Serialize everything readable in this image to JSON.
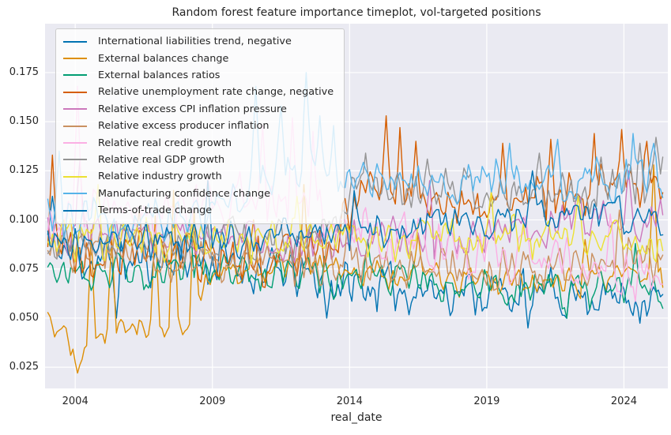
{
  "chart_data": {
    "type": "line",
    "title": "Random forest feature importance timeplot, vol-targeted positions",
    "xlabel": "real_date",
    "ylabel": "",
    "grid": true,
    "legend_position": "upper left",
    "plot_bg": "#EAEAF2",
    "grid_color": "#FFFFFF",
    "text_color": "#262626",
    "xlim": [
      2002.9,
      2025.6
    ],
    "ylim": [
      0.0142,
      0.1999
    ],
    "x_ticks": [
      2004,
      2009,
      2014,
      2019,
      2024
    ],
    "y_ticks": [
      0.025,
      0.05,
      0.075,
      0.1,
      0.125,
      0.15,
      0.175
    ],
    "x_start": 2003.0,
    "x_end": 2025.42,
    "points_per_year": 12,
    "value_min": 0.019,
    "value_max": 0.196,
    "series": [
      {
        "name": "International liabilities trend, negative",
        "color": "#0173B2",
        "noise": 0.012,
        "anchors": [
          [
            2003,
            0.092
          ],
          [
            2004,
            0.08
          ],
          [
            2006,
            0.078
          ],
          [
            2008,
            0.08
          ],
          [
            2010,
            0.075
          ],
          [
            2012,
            0.072
          ],
          [
            2014,
            0.067
          ],
          [
            2016,
            0.065
          ],
          [
            2018,
            0.064
          ],
          [
            2020,
            0.063
          ],
          [
            2022,
            0.062
          ],
          [
            2024,
            0.061
          ],
          [
            2025.4,
            0.06
          ]
        ],
        "spikes": [
          [
            2003.2,
            0.112
          ],
          [
            2005.5,
            0.05
          ],
          [
            2009.3,
            0.095
          ],
          [
            2013.2,
            0.05
          ],
          [
            2020.5,
            0.045
          ]
        ]
      },
      {
        "name": "External balances change",
        "color": "#DE8F05",
        "noise": 0.008,
        "anchors": [
          [
            2003,
            0.05
          ],
          [
            2003.7,
            0.038
          ],
          [
            2004.3,
            0.033
          ],
          [
            2005,
            0.043
          ],
          [
            2006,
            0.046
          ],
          [
            2007,
            0.042
          ],
          [
            2008,
            0.05
          ],
          [
            2009,
            0.07
          ],
          [
            2010,
            0.075
          ],
          [
            2012,
            0.076
          ],
          [
            2014,
            0.073
          ],
          [
            2016,
            0.071
          ],
          [
            2018,
            0.069
          ],
          [
            2020,
            0.068
          ],
          [
            2022,
            0.069
          ],
          [
            2024,
            0.07
          ],
          [
            2025.4,
            0.068
          ]
        ],
        "spikes": [
          [
            2004.1,
            0.022
          ],
          [
            2004.6,
            0.095
          ],
          [
            2005.3,
            0.09
          ],
          [
            2006.9,
            0.102
          ],
          [
            2007.6,
            0.115
          ],
          [
            2008.3,
            0.105
          ],
          [
            2010.5,
            0.1
          ],
          [
            2012.3,
            0.118
          ],
          [
            2016.5,
            0.093
          ],
          [
            2022.6,
            0.09
          ],
          [
            2025.1,
            0.128
          ]
        ]
      },
      {
        "name": "External balances ratios",
        "color": "#029E73",
        "noise": 0.0095,
        "anchors": [
          [
            2003,
            0.076
          ],
          [
            2005,
            0.073
          ],
          [
            2007,
            0.074
          ],
          [
            2009,
            0.075
          ],
          [
            2011,
            0.073
          ],
          [
            2013,
            0.071
          ],
          [
            2015,
            0.07
          ],
          [
            2017,
            0.068
          ],
          [
            2019,
            0.067
          ],
          [
            2021,
            0.065
          ],
          [
            2023,
            0.064
          ],
          [
            2025.4,
            0.066
          ]
        ],
        "spikes": [
          [
            2008.2,
            0.1
          ],
          [
            2014.7,
            0.09
          ],
          [
            2021.9,
            0.05
          ],
          [
            2024.4,
            0.088
          ]
        ]
      },
      {
        "name": "Relative unemployment rate change, negative",
        "color": "#D55E00",
        "noise": 0.012,
        "anchors": [
          [
            2003,
            0.086
          ],
          [
            2005,
            0.08
          ],
          [
            2007,
            0.082
          ],
          [
            2009,
            0.08
          ],
          [
            2011,
            0.079
          ],
          [
            2013,
            0.085
          ],
          [
            2014,
            0.1
          ],
          [
            2015,
            0.118
          ],
          [
            2016,
            0.113
          ],
          [
            2017,
            0.106
          ],
          [
            2018,
            0.108
          ],
          [
            2019,
            0.11
          ],
          [
            2020,
            0.112
          ],
          [
            2021,
            0.114
          ],
          [
            2022,
            0.112
          ],
          [
            2023,
            0.114
          ],
          [
            2024,
            0.117
          ],
          [
            2025.4,
            0.115
          ]
        ],
        "spikes": [
          [
            2003.15,
            0.133
          ],
          [
            2015.37,
            0.153
          ],
          [
            2015.8,
            0.147
          ],
          [
            2016.4,
            0.14
          ],
          [
            2019.6,
            0.139
          ],
          [
            2021.3,
            0.141
          ],
          [
            2022.9,
            0.144
          ],
          [
            2023.9,
            0.146
          ],
          [
            2024.8,
            0.14
          ]
        ]
      },
      {
        "name": "Relative excess CPI inflation pressure",
        "color": "#CC78BC",
        "noise": 0.0105,
        "anchors": [
          [
            2003,
            0.094
          ],
          [
            2005,
            0.09
          ],
          [
            2007,
            0.091
          ],
          [
            2009,
            0.092
          ],
          [
            2011,
            0.09
          ],
          [
            2013,
            0.089
          ],
          [
            2015,
            0.091
          ],
          [
            2017,
            0.09
          ],
          [
            2019,
            0.092
          ],
          [
            2021,
            0.096
          ],
          [
            2023,
            0.102
          ],
          [
            2025.4,
            0.099
          ]
        ],
        "spikes": [
          [
            2004.2,
            0.13
          ],
          [
            2016.9,
            0.12
          ],
          [
            2024.2,
            0.125
          ]
        ]
      },
      {
        "name": "Relative excess producer inflation",
        "color": "#CA9161",
        "noise": 0.0105,
        "anchors": [
          [
            2003,
            0.086
          ],
          [
            2005,
            0.083
          ],
          [
            2007,
            0.08
          ],
          [
            2009,
            0.079
          ],
          [
            2011,
            0.078
          ],
          [
            2013,
            0.078
          ],
          [
            2015,
            0.077
          ],
          [
            2017,
            0.076
          ],
          [
            2019,
            0.075
          ],
          [
            2021,
            0.076
          ],
          [
            2023,
            0.078
          ],
          [
            2025.4,
            0.081
          ]
        ],
        "spikes": [
          [
            2006.3,
            0.105
          ],
          [
            2013.9,
            0.098
          ],
          [
            2023.8,
            0.105
          ]
        ]
      },
      {
        "name": "Relative real credit growth",
        "color": "#FBAFE4",
        "noise": 0.0125,
        "anchors": [
          [
            2003,
            0.1
          ],
          [
            2005,
            0.104
          ],
          [
            2007,
            0.1
          ],
          [
            2009,
            0.107
          ],
          [
            2010.5,
            0.113
          ],
          [
            2012,
            0.11
          ],
          [
            2013,
            0.104
          ],
          [
            2014,
            0.097
          ],
          [
            2015,
            0.094
          ],
          [
            2016,
            0.091
          ],
          [
            2017,
            0.089
          ],
          [
            2018,
            0.085
          ],
          [
            2019,
            0.082
          ],
          [
            2020,
            0.08
          ],
          [
            2021,
            0.078
          ],
          [
            2022,
            0.076
          ],
          [
            2023,
            0.074
          ],
          [
            2024,
            0.073
          ],
          [
            2025.4,
            0.071
          ]
        ],
        "spikes": [
          [
            2004.05,
            0.168
          ],
          [
            2010.8,
            0.148
          ],
          [
            2011.9,
            0.152
          ],
          [
            2012.7,
            0.145
          ],
          [
            2020.4,
            0.102
          ],
          [
            2023.5,
            0.103
          ]
        ]
      },
      {
        "name": "Relative real GDP growth",
        "color": "#949494",
        "noise": 0.0115,
        "anchors": [
          [
            2003,
            0.09
          ],
          [
            2005,
            0.088
          ],
          [
            2007,
            0.089
          ],
          [
            2009,
            0.09
          ],
          [
            2011,
            0.089
          ],
          [
            2013,
            0.092
          ],
          [
            2014,
            0.112
          ],
          [
            2015,
            0.117
          ],
          [
            2016,
            0.114
          ],
          [
            2017,
            0.112
          ],
          [
            2018,
            0.114
          ],
          [
            2019,
            0.112
          ],
          [
            2020,
            0.114
          ],
          [
            2021,
            0.112
          ],
          [
            2022,
            0.114
          ],
          [
            2023,
            0.112
          ],
          [
            2024,
            0.117
          ],
          [
            2025.4,
            0.121
          ]
        ],
        "spikes": [
          [
            2014.6,
            0.134
          ],
          [
            2016.8,
            0.131
          ],
          [
            2020.9,
            0.134
          ],
          [
            2023.2,
            0.132
          ],
          [
            2024.6,
            0.139
          ],
          [
            2025.2,
            0.142
          ]
        ]
      },
      {
        "name": "Relative industry growth",
        "color": "#ECE133",
        "noise": 0.0105,
        "anchors": [
          [
            2003,
            0.091
          ],
          [
            2005,
            0.089
          ],
          [
            2007,
            0.09
          ],
          [
            2009,
            0.09
          ],
          [
            2011,
            0.088
          ],
          [
            2013,
            0.089
          ],
          [
            2015,
            0.09
          ],
          [
            2017,
            0.089
          ],
          [
            2019,
            0.09
          ],
          [
            2021,
            0.092
          ],
          [
            2023,
            0.09
          ],
          [
            2025.4,
            0.088
          ]
        ],
        "spikes": [
          [
            2004.8,
            0.118
          ],
          [
            2012.1,
            0.112
          ],
          [
            2019.2,
            0.115
          ],
          [
            2022.3,
            0.112
          ]
        ]
      },
      {
        "name": "Manufacturing confidence change",
        "color": "#56B4E9",
        "noise": 0.011,
        "anchors": [
          [
            2003,
            0.1
          ],
          [
            2005,
            0.098
          ],
          [
            2007,
            0.1
          ],
          [
            2009,
            0.104
          ],
          [
            2010,
            0.112
          ],
          [
            2011,
            0.122
          ],
          [
            2012,
            0.128
          ],
          [
            2013,
            0.124
          ],
          [
            2014,
            0.12
          ],
          [
            2015,
            0.118
          ],
          [
            2016,
            0.12
          ],
          [
            2017,
            0.118
          ],
          [
            2018,
            0.12
          ],
          [
            2019,
            0.12
          ],
          [
            2020,
            0.118
          ],
          [
            2021,
            0.12
          ],
          [
            2022,
            0.122
          ],
          [
            2023,
            0.12
          ],
          [
            2024,
            0.122
          ],
          [
            2025.4,
            0.12
          ]
        ],
        "spikes": [
          [
            2003.4,
            0.135
          ],
          [
            2010.6,
            0.168
          ],
          [
            2011.5,
            0.158
          ],
          [
            2012.4,
            0.175
          ],
          [
            2012.9,
            0.153
          ],
          [
            2013.4,
            0.148
          ],
          [
            2019.8,
            0.139
          ],
          [
            2021.6,
            0.141
          ],
          [
            2024.3,
            0.144
          ],
          [
            2025.1,
            0.139
          ]
        ]
      },
      {
        "name": "Terms-of-trade change",
        "color": "#0173B2",
        "noise": 0.009,
        "anchors": [
          [
            2003,
            0.085
          ],
          [
            2005,
            0.088
          ],
          [
            2007,
            0.089
          ],
          [
            2009,
            0.09
          ],
          [
            2011,
            0.09
          ],
          [
            2013,
            0.091
          ],
          [
            2015,
            0.093
          ],
          [
            2017,
            0.096
          ],
          [
            2019,
            0.099
          ],
          [
            2020,
            0.104
          ],
          [
            2021,
            0.105
          ],
          [
            2022,
            0.105
          ],
          [
            2023,
            0.104
          ],
          [
            2024,
            0.102
          ],
          [
            2025.4,
            0.099
          ]
        ],
        "spikes": [
          [
            2008.8,
            0.12
          ],
          [
            2014.2,
            0.115
          ],
          [
            2020.7,
            0.125
          ]
        ]
      }
    ]
  }
}
